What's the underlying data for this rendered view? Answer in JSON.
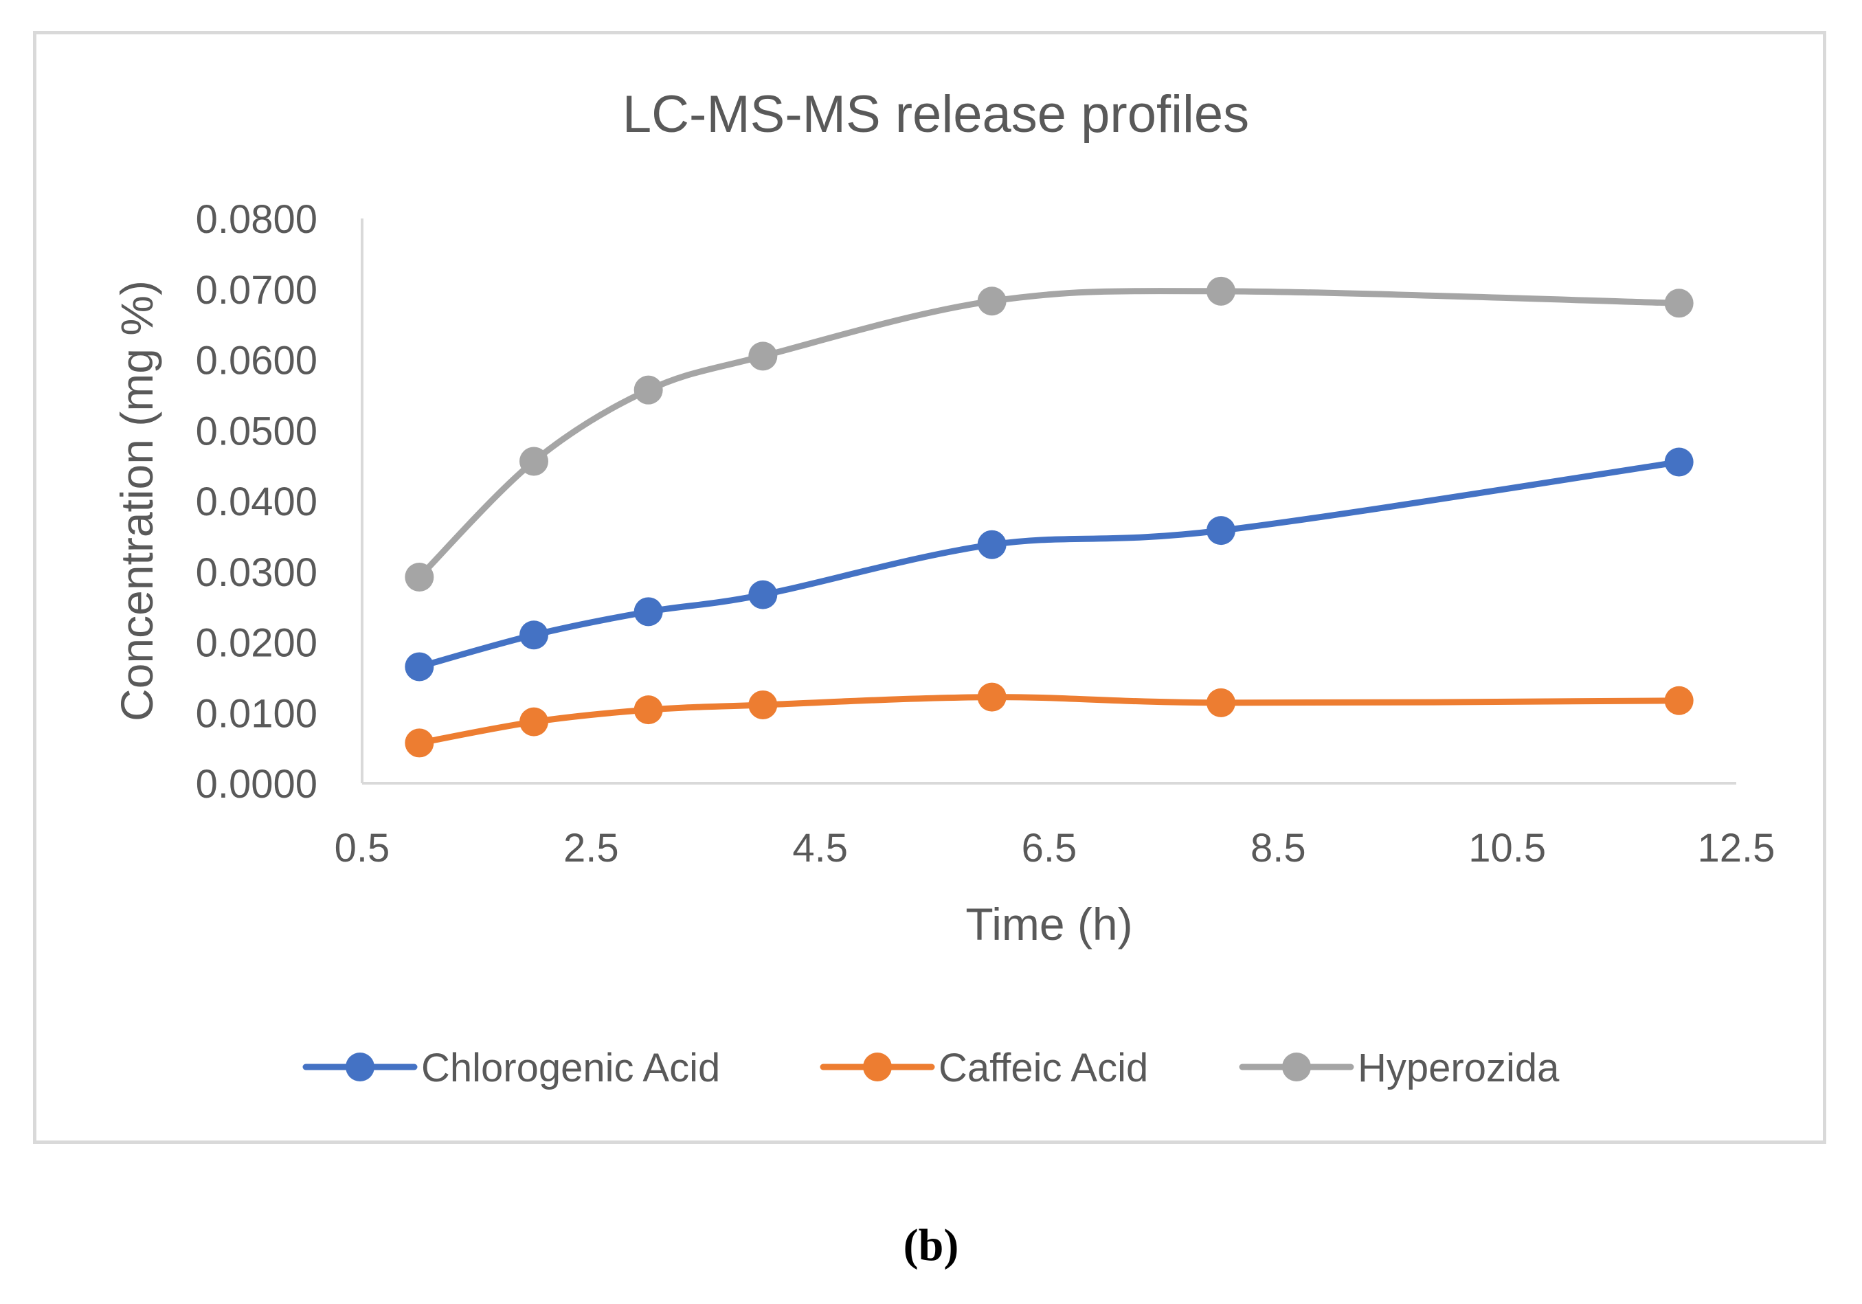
{
  "chart_data": {
    "type": "line",
    "title": "LC-MS-MS release profiles",
    "xlabel": "Time (h)",
    "ylabel": "Concentration (mg %)",
    "xlim": [
      0.5,
      12.5
    ],
    "ylim": [
      0,
      0.08
    ],
    "x_ticks": [
      "0.5",
      "2.5",
      "4.5",
      "6.5",
      "8.5",
      "10.5",
      "12.5"
    ],
    "y_ticks": [
      "0.0000",
      "0.0100",
      "0.0200",
      "0.0300",
      "0.0400",
      "0.0500",
      "0.0600",
      "0.0700",
      "0.0800"
    ],
    "grid": false,
    "smooth": true,
    "legend_position": "bottom",
    "x": [
      1,
      2,
      3,
      4,
      6,
      8,
      12
    ],
    "series": [
      {
        "name": "Chlorogenic Acid",
        "color": "#4472c4",
        "values": [
          0.0165,
          0.021,
          0.0243,
          0.0267,
          0.0338,
          0.0358,
          0.0455
        ]
      },
      {
        "name": "Caffeic Acid",
        "color": "#ed7d31",
        "values": [
          0.0057,
          0.0087,
          0.0104,
          0.0111,
          0.0122,
          0.0114,
          0.0117
        ]
      },
      {
        "name": "Hyperozida",
        "color": "#a5a5a5",
        "values": [
          0.0292,
          0.0456,
          0.0557,
          0.0605,
          0.0683,
          0.0697,
          0.068
        ]
      }
    ]
  },
  "panel_label": "(b)"
}
